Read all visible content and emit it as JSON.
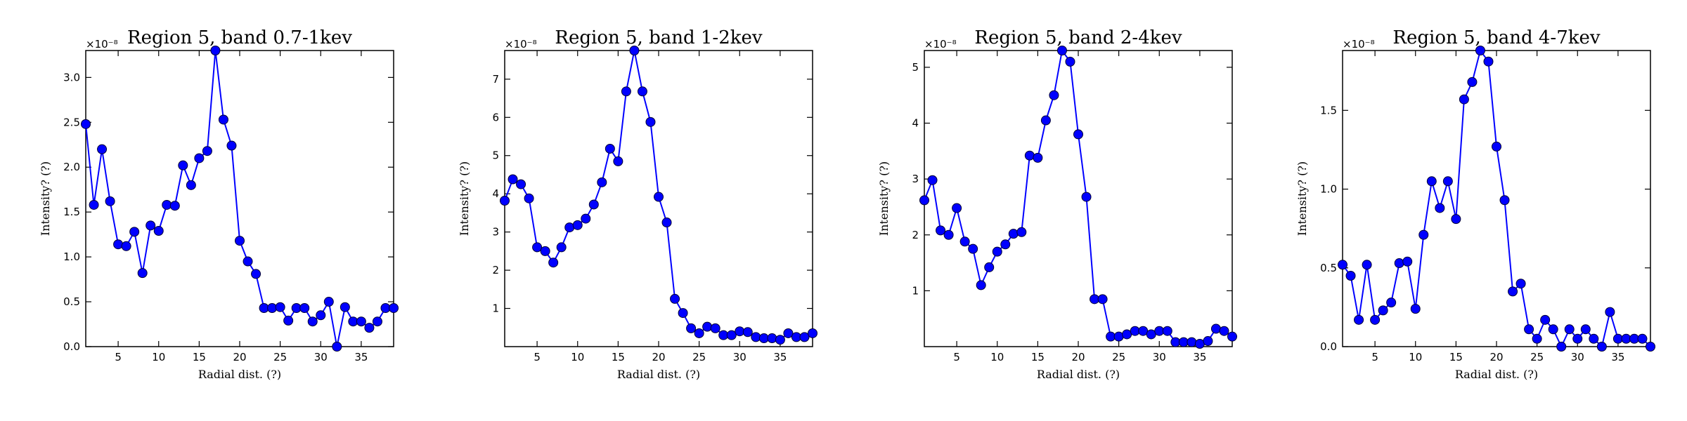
{
  "style": {
    "line_color": "#0000ff",
    "marker_color": "#0000ff",
    "background": "#ffffff"
  },
  "chart_data": [
    {
      "type": "line",
      "title": "Region 5, band 0.7-1kev",
      "xlabel": "Radial dist. (?)",
      "ylabel": "Intensity? (?)",
      "y_offset_label": "×10⁻⁸",
      "xlim": [
        1,
        39
      ],
      "ylim": [
        0,
        3.3
      ],
      "xticks": [
        5,
        10,
        15,
        20,
        25,
        30,
        35
      ],
      "yticks": [
        "0.0",
        "0.5",
        "1.0",
        "1.5",
        "2.0",
        "2.5",
        "3.0"
      ],
      "x": [
        1,
        2,
        3,
        4,
        5,
        6,
        7,
        8,
        9,
        10,
        11,
        12,
        13,
        14,
        15,
        16,
        17,
        18,
        19,
        20,
        21,
        22,
        23,
        24,
        25,
        26,
        27,
        28,
        29,
        30,
        31,
        32,
        33,
        34,
        35,
        36,
        37,
        38,
        39
      ],
      "values": [
        2.48,
        1.58,
        2.2,
        1.62,
        1.14,
        1.12,
        1.28,
        0.82,
        1.35,
        1.29,
        1.58,
        1.57,
        2.02,
        1.8,
        2.1,
        2.18,
        3.3,
        2.53,
        2.24,
        1.18,
        0.95,
        0.81,
        0.43,
        0.43,
        0.44,
        0.29,
        0.43,
        0.43,
        0.28,
        0.35,
        0.5,
        0.0,
        0.44,
        0.28,
        0.28,
        0.21,
        0.28,
        0.43,
        0.43
      ]
    },
    {
      "type": "line",
      "title": "Region 5, band 1-2kev",
      "xlabel": "Radial dist. (?)",
      "ylabel": "Intensity? (?)",
      "y_offset_label": "×10⁻⁸",
      "xlim": [
        1,
        39
      ],
      "ylim": [
        0,
        7.75
      ],
      "xticks": [
        5,
        10,
        15,
        20,
        25,
        30,
        35
      ],
      "yticks": [
        "1",
        "2",
        "3",
        "4",
        "5",
        "6",
        "7"
      ],
      "x": [
        1,
        2,
        3,
        4,
        5,
        6,
        7,
        8,
        9,
        10,
        11,
        12,
        13,
        14,
        15,
        16,
        17,
        18,
        19,
        20,
        21,
        22,
        23,
        24,
        25,
        26,
        27,
        28,
        29,
        30,
        31,
        32,
        33,
        34,
        35,
        36,
        37,
        38,
        39
      ],
      "values": [
        3.82,
        4.38,
        4.25,
        3.88,
        2.6,
        2.5,
        2.2,
        2.6,
        3.12,
        3.18,
        3.35,
        3.72,
        4.3,
        5.18,
        4.85,
        6.68,
        7.75,
        6.68,
        5.88,
        3.92,
        3.25,
        1.25,
        0.88,
        0.48,
        0.35,
        0.52,
        0.48,
        0.3,
        0.3,
        0.4,
        0.38,
        0.25,
        0.22,
        0.22,
        0.18,
        0.35,
        0.25,
        0.25,
        0.35
      ]
    },
    {
      "type": "line",
      "title": "Region 5, band 2-4kev",
      "xlabel": "Radial dist. (?)",
      "ylabel": "Intensity? (?)",
      "y_offset_label": "×10⁻⁸",
      "xlim": [
        1,
        39
      ],
      "ylim": [
        0,
        5.3
      ],
      "xticks": [
        5,
        10,
        15,
        20,
        25,
        30,
        35
      ],
      "yticks": [
        "1",
        "2",
        "3",
        "4",
        "5"
      ],
      "x": [
        1,
        2,
        3,
        4,
        5,
        6,
        7,
        8,
        9,
        10,
        11,
        12,
        13,
        14,
        15,
        16,
        17,
        18,
        19,
        20,
        21,
        22,
        23,
        24,
        25,
        26,
        27,
        28,
        29,
        30,
        31,
        32,
        33,
        34,
        35,
        36,
        37,
        38,
        39
      ],
      "values": [
        2.62,
        2.98,
        2.08,
        2.0,
        2.48,
        1.88,
        1.75,
        1.1,
        1.42,
        1.7,
        1.83,
        2.02,
        2.05,
        3.42,
        3.38,
        4.05,
        4.5,
        5.3,
        5.1,
        3.8,
        2.68,
        0.85,
        0.85,
        0.18,
        0.18,
        0.22,
        0.28,
        0.28,
        0.22,
        0.28,
        0.28,
        0.08,
        0.08,
        0.08,
        0.05,
        0.1,
        0.32,
        0.28,
        0.18
      ]
    },
    {
      "type": "line",
      "title": "Region 5, band 4-7kev",
      "xlabel": "Radial dist. (?)",
      "ylabel": "Intensity? (?)",
      "y_offset_label": "×10⁻⁸",
      "xlim": [
        1,
        39
      ],
      "ylim": [
        0,
        1.88
      ],
      "xticks": [
        5,
        10,
        15,
        20,
        25,
        30,
        35
      ],
      "yticks": [
        "0.0",
        "0.5",
        "1.0",
        "1.5"
      ],
      "x": [
        1,
        2,
        3,
        4,
        5,
        6,
        7,
        8,
        9,
        10,
        11,
        12,
        13,
        14,
        15,
        16,
        17,
        18,
        19,
        20,
        21,
        22,
        23,
        24,
        25,
        26,
        27,
        28,
        29,
        30,
        31,
        32,
        33,
        34,
        35,
        36,
        37,
        38,
        39
      ],
      "values": [
        0.52,
        0.45,
        0.17,
        0.52,
        0.17,
        0.23,
        0.28,
        0.53,
        0.54,
        0.24,
        0.71,
        1.05,
        0.88,
        1.05,
        0.81,
        1.57,
        1.68,
        1.88,
        1.81,
        1.27,
        0.93,
        0.35,
        0.4,
        0.11,
        0.05,
        0.17,
        0.11,
        0.0,
        0.11,
        0.05,
        0.11,
        0.05,
        0.0,
        0.22,
        0.05,
        0.05,
        0.05,
        0.05,
        0.0
      ]
    }
  ]
}
